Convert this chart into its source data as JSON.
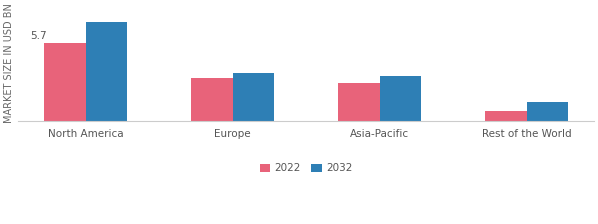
{
  "categories": [
    "North America",
    "Europe",
    "Asia-Pacific",
    "Rest of the World"
  ],
  "values_2022": [
    5.7,
    3.1,
    2.8,
    0.7
  ],
  "values_2032": [
    7.2,
    3.5,
    3.3,
    1.4
  ],
  "color_2022": "#e8637a",
  "color_2032": "#2e7fb5",
  "ylabel": "MARKET SIZE IN USD BN",
  "annotation_text": "5.7",
  "bar_width": 0.28,
  "legend_labels": [
    "2022",
    "2032"
  ],
  "ylim": [
    0,
    8.5
  ],
  "background_color": "#ffffff",
  "label_fontsize": 7.5,
  "tick_fontsize": 7.5,
  "ylabel_fontsize": 7
}
